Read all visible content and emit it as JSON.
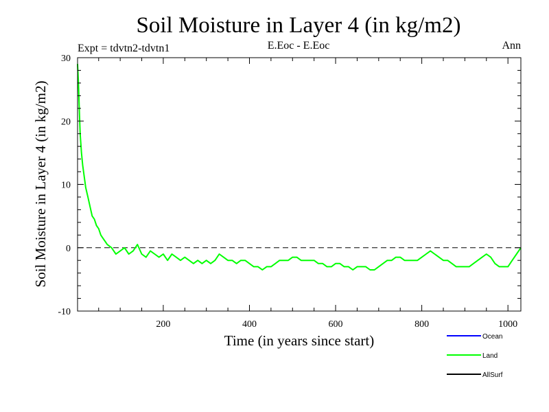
{
  "chart_data": {
    "type": "line",
    "title": "Soil Moisture in Layer 4 (in kg/m2)",
    "subtitle_left": "Expt = tdvtn2-tdvtn1",
    "subtitle_center": "E.Eoc - E.Eoc",
    "subtitle_right": "Ann",
    "xlabel": "Time (in years since start)",
    "ylabel": "Soil Moisture in Layer 4 (in kg/m2)",
    "xlim": [
      1,
      1030
    ],
    "ylim": [
      -10,
      30
    ],
    "xticks": [
      200,
      400,
      600,
      800,
      1000
    ],
    "yticks": [
      -10,
      0,
      10,
      20,
      30
    ],
    "reference_line": 0,
    "legend_placement": "bottom-right",
    "series": [
      {
        "name": "Ocean",
        "color": "#0000ff",
        "points": []
      },
      {
        "name": "Land",
        "color": "#00ff00",
        "points": [
          [
            1,
            29
          ],
          [
            3,
            26
          ],
          [
            5,
            22
          ],
          [
            7,
            18
          ],
          [
            10,
            15
          ],
          [
            13,
            13
          ],
          [
            16,
            11.5
          ],
          [
            20,
            9.5
          ],
          [
            25,
            8
          ],
          [
            30,
            6.5
          ],
          [
            35,
            5
          ],
          [
            40,
            4.5
          ],
          [
            45,
            3.5
          ],
          [
            50,
            3
          ],
          [
            55,
            2
          ],
          [
            60,
            1.5
          ],
          [
            65,
            1
          ],
          [
            70,
            0.5
          ],
          [
            80,
            0
          ],
          [
            90,
            -1
          ],
          [
            100,
            -0.5
          ],
          [
            110,
            0
          ],
          [
            120,
            -1
          ],
          [
            130,
            -0.5
          ],
          [
            140,
            0.5
          ],
          [
            150,
            -1
          ],
          [
            160,
            -1.5
          ],
          [
            170,
            -0.5
          ],
          [
            180,
            -1
          ],
          [
            190,
            -1.5
          ],
          [
            200,
            -1
          ],
          [
            210,
            -2
          ],
          [
            220,
            -1
          ],
          [
            230,
            -1.5
          ],
          [
            240,
            -2
          ],
          [
            250,
            -1.5
          ],
          [
            260,
            -2
          ],
          [
            270,
            -2.5
          ],
          [
            280,
            -2
          ],
          [
            290,
            -2.5
          ],
          [
            300,
            -2
          ],
          [
            310,
            -2.5
          ],
          [
            320,
            -2
          ],
          [
            330,
            -1
          ],
          [
            340,
            -1.5
          ],
          [
            350,
            -2
          ],
          [
            360,
            -2
          ],
          [
            370,
            -2.5
          ],
          [
            380,
            -2
          ],
          [
            390,
            -2
          ],
          [
            400,
            -2.5
          ],
          [
            410,
            -3
          ],
          [
            420,
            -3
          ],
          [
            430,
            -3.5
          ],
          [
            440,
            -3
          ],
          [
            450,
            -3
          ],
          [
            460,
            -2.5
          ],
          [
            470,
            -2
          ],
          [
            480,
            -2
          ],
          [
            490,
            -2
          ],
          [
            500,
            -1.5
          ],
          [
            510,
            -1.5
          ],
          [
            520,
            -2
          ],
          [
            530,
            -2
          ],
          [
            540,
            -2
          ],
          [
            550,
            -2
          ],
          [
            560,
            -2.5
          ],
          [
            570,
            -2.5
          ],
          [
            580,
            -3
          ],
          [
            590,
            -3
          ],
          [
            600,
            -2.5
          ],
          [
            610,
            -2.5
          ],
          [
            620,
            -3
          ],
          [
            630,
            -3
          ],
          [
            640,
            -3.5
          ],
          [
            650,
            -3
          ],
          [
            660,
            -3
          ],
          [
            670,
            -3
          ],
          [
            680,
            -3.5
          ],
          [
            690,
            -3.5
          ],
          [
            700,
            -3
          ],
          [
            710,
            -2.5
          ],
          [
            720,
            -2
          ],
          [
            730,
            -2
          ],
          [
            740,
            -1.5
          ],
          [
            750,
            -1.5
          ],
          [
            760,
            -2
          ],
          [
            770,
            -2
          ],
          [
            780,
            -2
          ],
          [
            790,
            -2
          ],
          [
            800,
            -1.5
          ],
          [
            810,
            -1
          ],
          [
            820,
            -0.5
          ],
          [
            830,
            -1
          ],
          [
            840,
            -1.5
          ],
          [
            850,
            -2
          ],
          [
            860,
            -2
          ],
          [
            870,
            -2.5
          ],
          [
            880,
            -3
          ],
          [
            890,
            -3
          ],
          [
            900,
            -3
          ],
          [
            910,
            -3
          ],
          [
            920,
            -2.5
          ],
          [
            930,
            -2
          ],
          [
            940,
            -1.5
          ],
          [
            950,
            -1
          ],
          [
            960,
            -1.5
          ],
          [
            970,
            -2.5
          ],
          [
            980,
            -3
          ],
          [
            990,
            -3
          ],
          [
            1000,
            -3
          ],
          [
            1010,
            -2
          ],
          [
            1020,
            -1
          ],
          [
            1030,
            0
          ]
        ]
      },
      {
        "name": "AllSurf",
        "color": "#000000",
        "points": []
      }
    ]
  }
}
